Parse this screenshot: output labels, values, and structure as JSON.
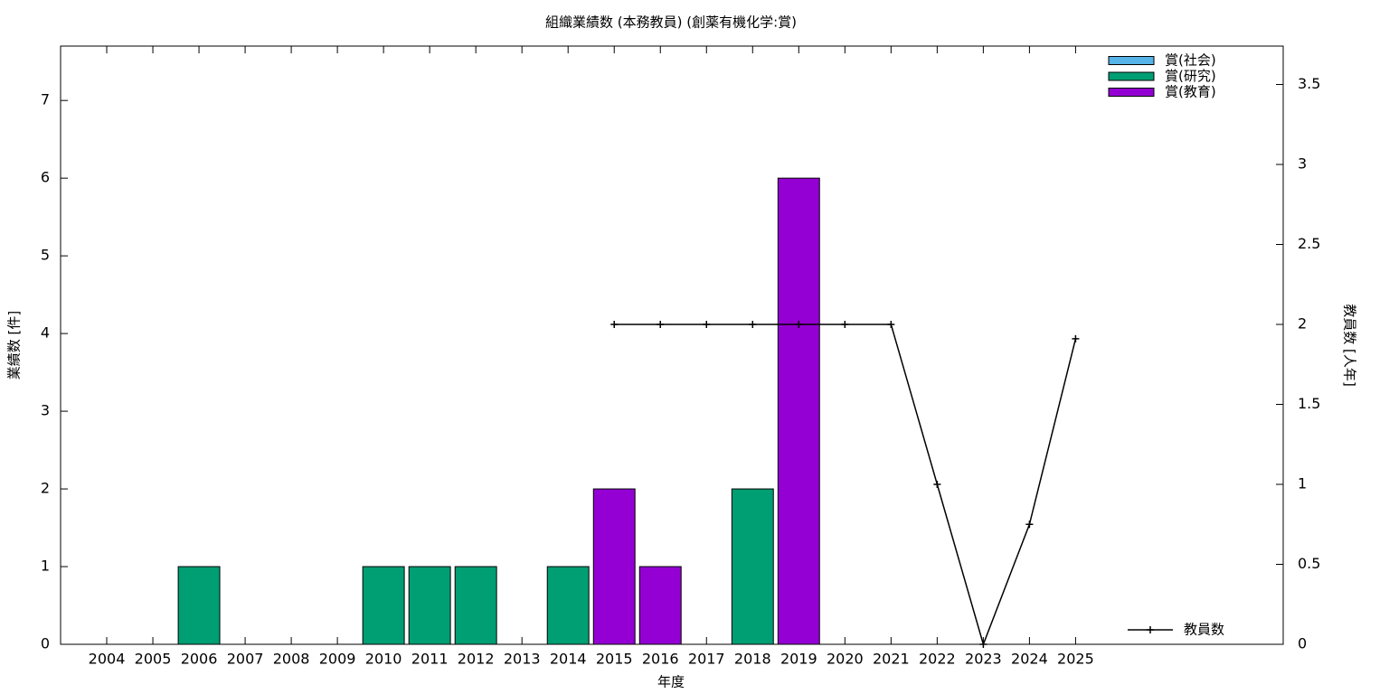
{
  "chart_data": {
    "type": "bar",
    "title": "組織業績数 (本務教員) (創薬有機化学:賞)",
    "xlabel": "年度",
    "ylabel": "業績数 [件]",
    "y2label": "教員数 [人年]",
    "stacked": true,
    "x": [
      2004,
      2005,
      2006,
      2007,
      2008,
      2009,
      2010,
      2011,
      2012,
      2013,
      2014,
      2015,
      2016,
      2017,
      2018,
      2019,
      2020,
      2021,
      2022,
      2023,
      2024,
      2025
    ],
    "xlim": [
      2003,
      2029.5
    ],
    "xticks": [
      2004,
      2005,
      2006,
      2007,
      2008,
      2009,
      2010,
      2011,
      2012,
      2013,
      2014,
      2015,
      2016,
      2017,
      2018,
      2019,
      2020,
      2021,
      2022,
      2023,
      2024,
      2025
    ],
    "ylim": [
      0,
      7.7
    ],
    "yticks": [
      0,
      1,
      2,
      3,
      4,
      5,
      6,
      7
    ],
    "y2lim": [
      0,
      3.74
    ],
    "y2ticks": [
      0,
      0.5,
      1,
      1.5,
      2,
      2.5,
      3,
      3.5
    ],
    "series": [
      {
        "name": "賞(社会)",
        "type": "bar",
        "color": "#56b4e9",
        "values": [
          0,
          0,
          0,
          0,
          0,
          0,
          0,
          0,
          0,
          0,
          0,
          0,
          0,
          0,
          0,
          0,
          0,
          0,
          0,
          0,
          0,
          0
        ]
      },
      {
        "name": "賞(研究)",
        "type": "bar",
        "color": "#009e73",
        "values": [
          0,
          0,
          1,
          0,
          0,
          0,
          1,
          1,
          1,
          0,
          1,
          0,
          0,
          0,
          2,
          0,
          0,
          0,
          0,
          0,
          0,
          0
        ]
      },
      {
        "name": "賞(教育)",
        "type": "bar",
        "color": "#9400d3",
        "values": [
          0,
          0,
          0,
          0,
          0,
          0,
          0,
          0,
          0,
          0,
          0,
          2,
          1,
          0,
          0,
          6,
          0,
          0,
          0,
          0,
          0,
          0
        ]
      },
      {
        "name": "教員数",
        "type": "line",
        "axis": "y2",
        "color": "#000000",
        "values": [
          null,
          null,
          null,
          null,
          null,
          null,
          null,
          null,
          null,
          null,
          null,
          2,
          2,
          2,
          2,
          2,
          2,
          2,
          1,
          0,
          0.75,
          1.91
        ]
      }
    ]
  }
}
